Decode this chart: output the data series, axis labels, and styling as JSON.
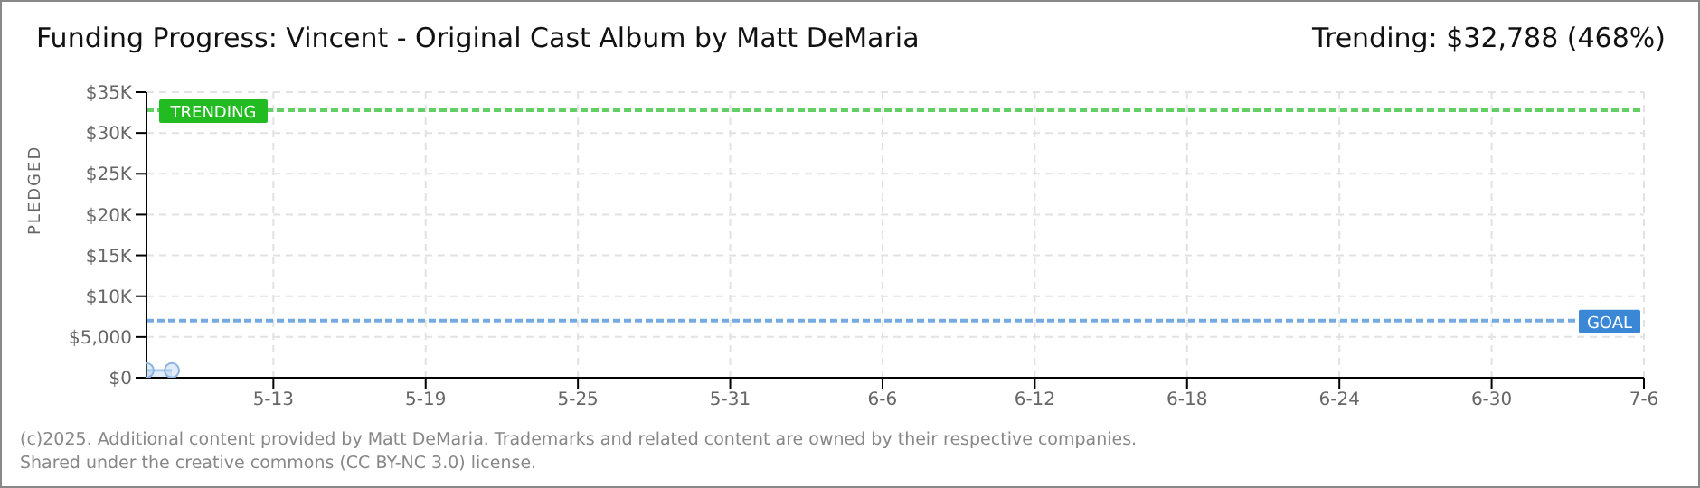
{
  "chart_data": {
    "type": "area",
    "title": "Funding Progress: Vincent - Original Cast Album by Matt DeMaria",
    "ylabel": "PLEDGED",
    "annotations": [
      "Trending: $32,788 (468%)",
      "(c)2025. Additional content provided by Matt DeMaria. Trademarks and related content are owned by their respective companies.",
      "Shared under the creative commons (CC BY-NC 3.0) license."
    ],
    "x": [
      "--05-08",
      "--05-09"
    ],
    "series": [
      {
        "color": "#a9c8ee",
        "values": [
          900,
          900
        ]
      }
    ],
    "marker": "circle",
    "xlim": [
      "--05-08",
      "--07-06"
    ],
    "xticks": [
      {
        "value": "--05-13",
        "label": "5-13"
      },
      {
        "value": "--05-19",
        "label": "5-19"
      },
      {
        "value": "--05-25",
        "label": "5-25"
      },
      {
        "value": "--05-31",
        "label": "5-31"
      },
      {
        "value": "--06-06",
        "label": "6-6"
      },
      {
        "value": "--06-12",
        "label": "6-12"
      },
      {
        "value": "--06-18",
        "label": "6-18"
      },
      {
        "value": "--06-24",
        "label": "6-24"
      },
      {
        "value": "--06-30",
        "label": "6-30"
      },
      {
        "value": "--07-06",
        "label": "7-6"
      }
    ],
    "ylim": [
      0,
      35000
    ],
    "yticks": [
      {
        "value": 0,
        "label": "$0"
      },
      {
        "value": 5000,
        "label": "$5,000"
      },
      {
        "value": 10000,
        "label": "$10K"
      },
      {
        "value": 15000,
        "label": "$15K"
      },
      {
        "value": 20000,
        "label": "$20K"
      },
      {
        "value": 25000,
        "label": "$25K"
      },
      {
        "value": 30000,
        "label": "$30K"
      },
      {
        "value": 35000,
        "label": "$35K"
      }
    ],
    "ref_lines": [
      {
        "axis": "y",
        "value": 32788,
        "label": "TRENDING",
        "color": "#22bb22",
        "line_style": "dashed"
      },
      {
        "axis": "y",
        "value": 7000,
        "label": "GOAL",
        "color": "#3a87d6",
        "line_style": "dashed"
      }
    ],
    "grid": true
  }
}
